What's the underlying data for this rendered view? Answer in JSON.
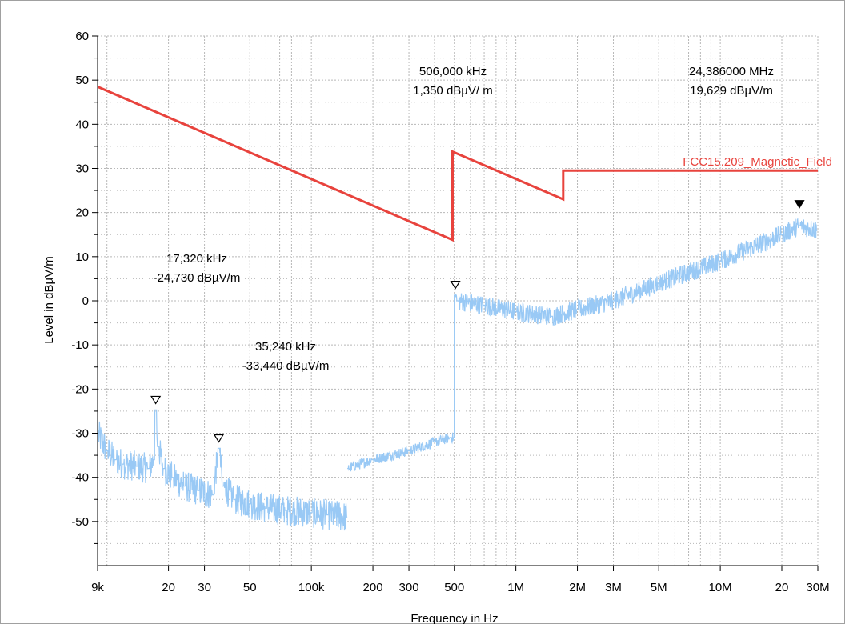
{
  "chart_data": {
    "type": "line",
    "title": "",
    "xlabel": "Frequency in Hz",
    "ylabel": "Level in dBµV/m",
    "x_scale": "log",
    "xlim_hz": [
      9000,
      30000000
    ],
    "ylim": [
      -60,
      60
    ],
    "grid": true,
    "x_ticks": [
      {
        "hz": 9000,
        "label": "9k"
      },
      {
        "hz": 20000,
        "label": "20"
      },
      {
        "hz": 30000,
        "label": "30"
      },
      {
        "hz": 50000,
        "label": "50"
      },
      {
        "hz": 100000,
        "label": "100k"
      },
      {
        "hz": 200000,
        "label": "200"
      },
      {
        "hz": 300000,
        "label": "300"
      },
      {
        "hz": 500000,
        "label": "500"
      },
      {
        "hz": 1000000,
        "label": "1M"
      },
      {
        "hz": 2000000,
        "label": "2M"
      },
      {
        "hz": 3000000,
        "label": "3M"
      },
      {
        "hz": 5000000,
        "label": "5M"
      },
      {
        "hz": 10000000,
        "label": "10M"
      },
      {
        "hz": 20000000,
        "label": "20"
      },
      {
        "hz": 30000000,
        "label": "30M"
      }
    ],
    "y_ticks": [
      {
        "value": 60,
        "label": "60"
      },
      {
        "value": 50,
        "label": "50"
      },
      {
        "value": 40,
        "label": "40"
      },
      {
        "value": 30,
        "label": "30"
      },
      {
        "value": 20,
        "label": "20"
      },
      {
        "value": 10,
        "label": "10"
      },
      {
        "value": 0,
        "label": "0"
      },
      {
        "value": -10,
        "label": "-10"
      },
      {
        "value": -20,
        "label": "-20"
      },
      {
        "value": -30,
        "label": "-30"
      },
      {
        "value": -40,
        "label": "-40"
      },
      {
        "value": -50,
        "label": "-50"
      }
    ],
    "limit_line": {
      "name": "FCC15.209_Magnetic_Field",
      "color": "#e8433d",
      "points": [
        [
          9000,
          48.5
        ],
        [
          490000,
          13.8
        ],
        [
          490000,
          33.8
        ],
        [
          1705000,
          23.0
        ],
        [
          1705000,
          29.5
        ],
        [
          30000000,
          29.5
        ]
      ]
    },
    "measurement": {
      "color": "#99c9f5",
      "segments": [
        {
          "points": [
            [
              9000,
              -30
            ],
            [
              10000,
              -34
            ],
            [
              11000,
              -36
            ],
            [
              12000,
              -37
            ],
            [
              14000,
              -37.5
            ],
            [
              16000,
              -38
            ],
            [
              17000,
              -36
            ],
            [
              17320,
              -24.7
            ],
            [
              17800,
              -33
            ],
            [
              19000,
              -38
            ],
            [
              21000,
              -40
            ],
            [
              24000,
              -42
            ],
            [
              28000,
              -43
            ],
            [
              33000,
              -44
            ],
            [
              35240,
              -33.4
            ],
            [
              37000,
              -42
            ],
            [
              42000,
              -45
            ],
            [
              50000,
              -46
            ],
            [
              60000,
              -47
            ],
            [
              75000,
              -47.5
            ],
            [
              100000,
              -48
            ],
            [
              120000,
              -48.5
            ],
            [
              150000,
              -49
            ]
          ],
          "noise": 3.5
        },
        {
          "points": [
            [
              150000,
              -38
            ],
            [
              200000,
              -36
            ],
            [
              300000,
              -34
            ],
            [
              400000,
              -32
            ],
            [
              480000,
              -31
            ],
            [
              500000,
              -31
            ]
          ],
          "noise": 1.2
        },
        {
          "points": [
            [
              500000,
              1.35
            ],
            [
              520000,
              0
            ],
            [
              700000,
              -1
            ],
            [
              1000000,
              -2.5
            ],
            [
              1500000,
              -3.5
            ],
            [
              2000000,
              -2
            ],
            [
              3000000,
              0
            ],
            [
              5000000,
              4
            ],
            [
              10000000,
              9
            ],
            [
              20000000,
              15
            ],
            [
              24386000,
              17
            ],
            [
              30000000,
              16
            ]
          ],
          "noise": 2.2
        }
      ]
    },
    "markers": [
      {
        "hz": 17320,
        "level": -24.73,
        "filled": false
      },
      {
        "hz": 35240,
        "level": -33.44,
        "filled": false
      },
      {
        "hz": 506000,
        "level": 1.35,
        "filled": false
      },
      {
        "hz": 24386000,
        "level": 19.629,
        "filled": true
      }
    ],
    "annotations": [
      {
        "freq_text": "506,000 kHz",
        "level_text": "1,350 dBµV/ m"
      },
      {
        "freq_text": "24,386000 MHz",
        "level_text": "19,629 dBµV/m"
      },
      {
        "freq_text": "17,320 kHz",
        "level_text": "-24,730 dBµV/m"
      },
      {
        "freq_text": "35,240 kHz",
        "level_text": "-33,440 dBµV/m"
      }
    ]
  }
}
